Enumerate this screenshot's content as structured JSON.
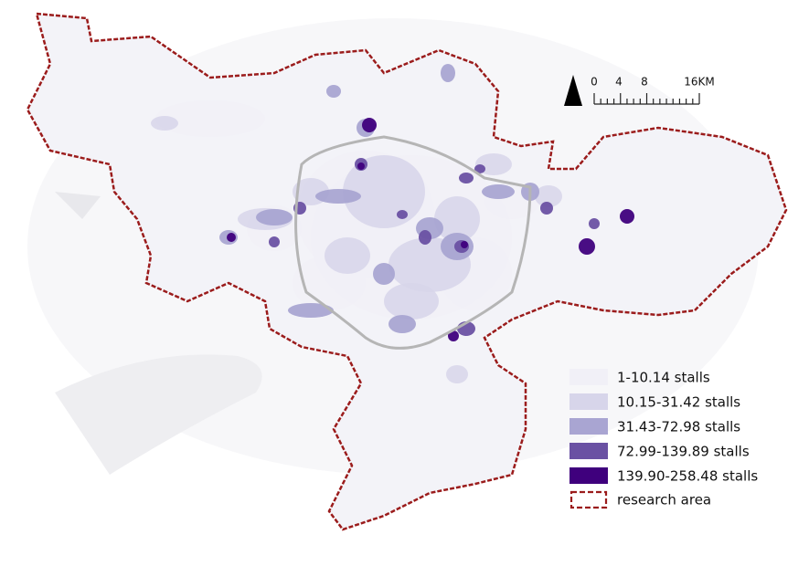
{
  "scale_bar": {
    "labels": [
      "0",
      "4",
      "8",
      "16KM"
    ]
  },
  "legend": {
    "items": [
      {
        "label": "1-10.14 stalls",
        "color": "#f1f0f7"
      },
      {
        "label": "10.15-31.42 stalls",
        "color": "#d7d5ea"
      },
      {
        "label": "31.43-72.98 stalls",
        "color": "#a9a5d2"
      },
      {
        "label": "72.99-139.89 stalls",
        "color": "#6a51a3"
      },
      {
        "label": "139.90-258.48 stalls",
        "color": "#3f007d"
      }
    ]
  },
  "boundary": {
    "label": "research area",
    "color": "#9b1c1c"
  }
}
